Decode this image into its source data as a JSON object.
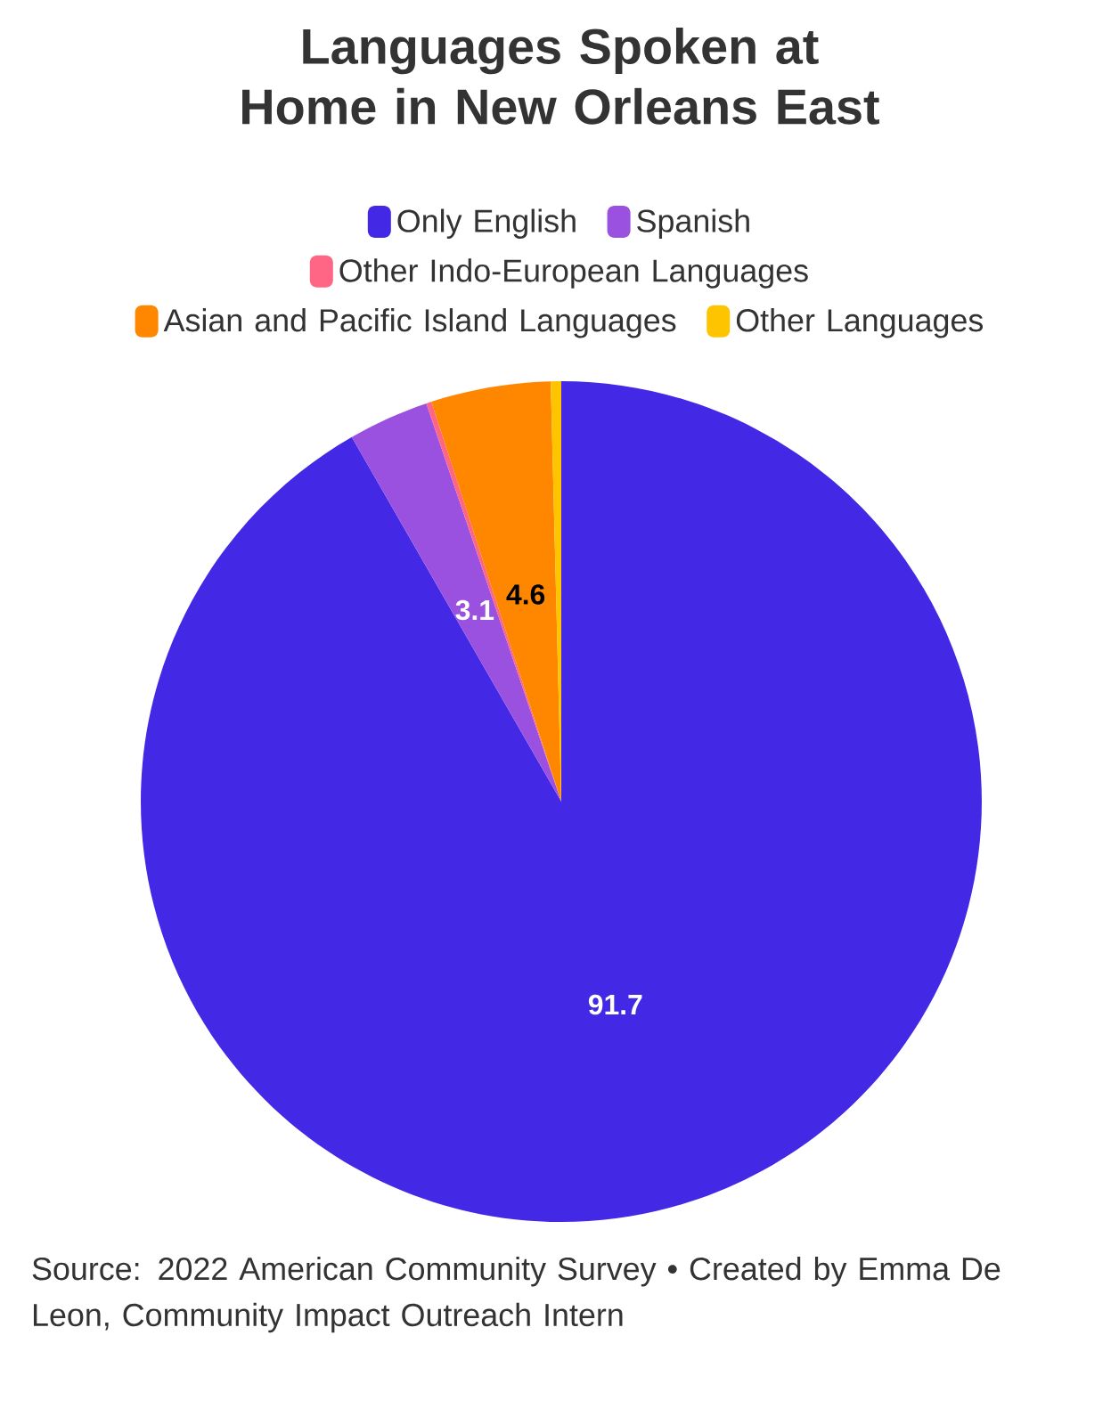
{
  "chart_data": {
    "type": "pie",
    "title": "Languages Spoken at Home in New Orleans East",
    "categories": [
      "Only English",
      "Spanish",
      "Other Indo-European Languages",
      "Asian and Pacific Island Languages",
      "Other Languages"
    ],
    "values": [
      91.7,
      3.1,
      0.2,
      4.6,
      0.4
    ],
    "colors": [
      "#4329e6",
      "#9b51e0",
      "#ff6584",
      "#ff8700",
      "#ffc400"
    ],
    "value_labels": [
      "91.7",
      "3.1",
      null,
      "4.6",
      null
    ],
    "legend": "top",
    "annotations": [
      "Source: 2022 American Community Survey • Created by Emma De Leon, Community Impact Outreach Intern"
    ]
  }
}
